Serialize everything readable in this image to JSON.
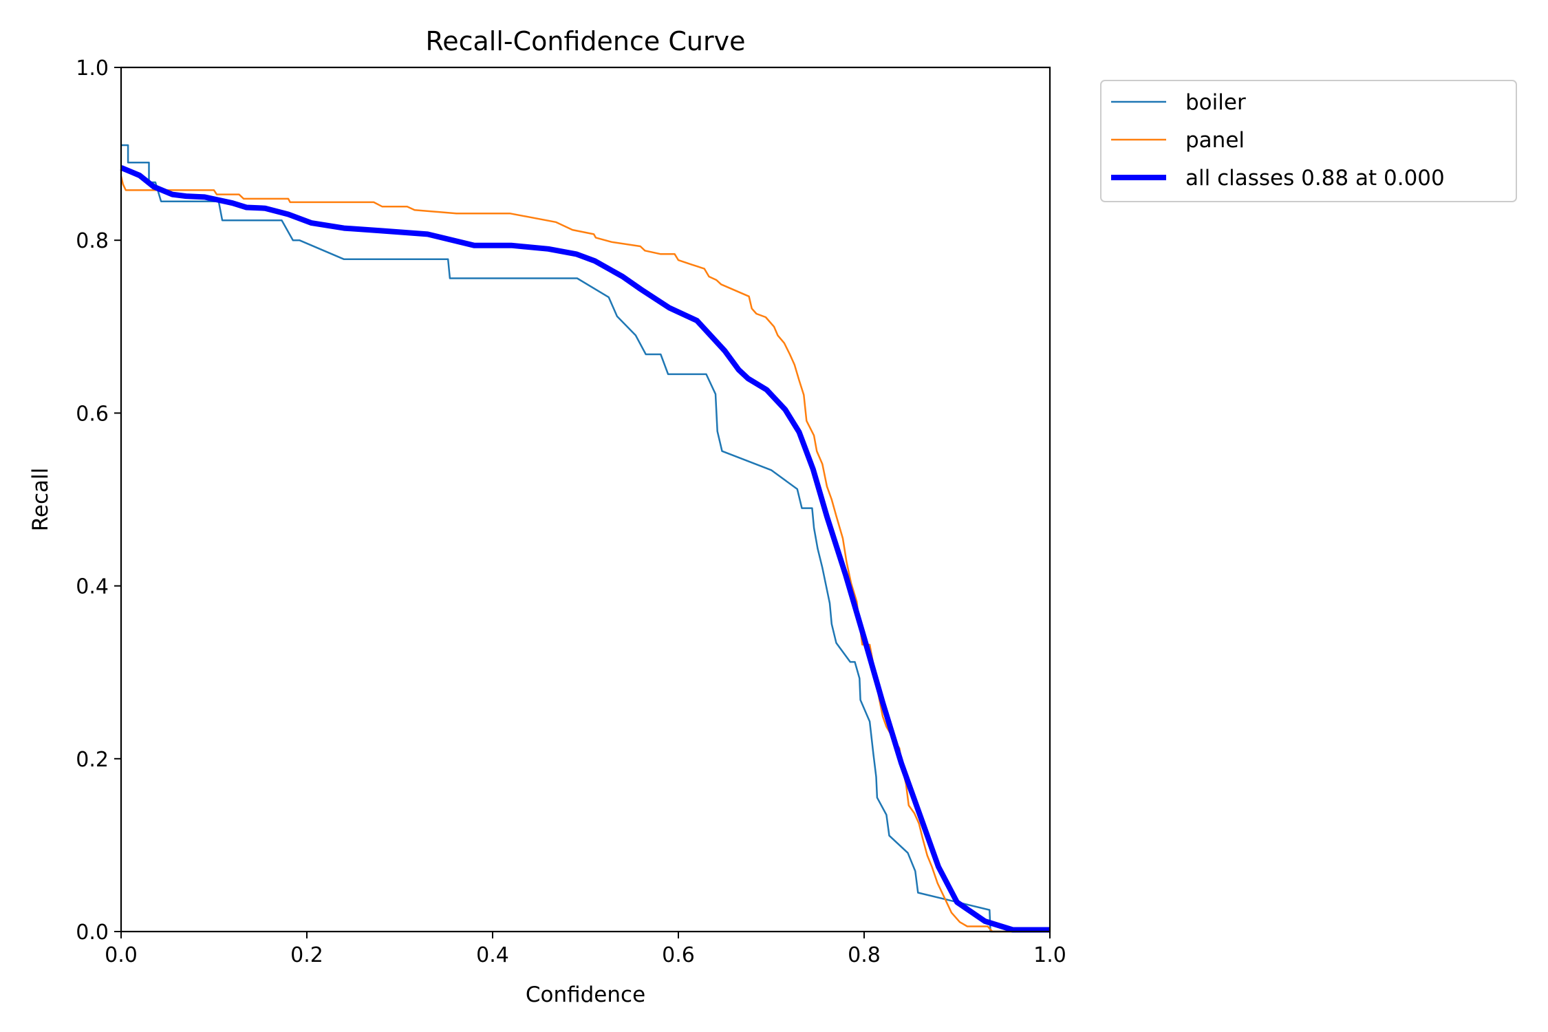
{
  "chart_data": {
    "type": "line",
    "title": "Recall-Confidence Curve",
    "xlabel": "Confidence",
    "ylabel": "Recall",
    "xlim": [
      0,
      1
    ],
    "ylim": [
      0,
      1
    ],
    "xticks": [
      "0.0",
      "0.2",
      "0.4",
      "0.6",
      "0.8",
      "1.0"
    ],
    "yticks": [
      "0.0",
      "0.2",
      "0.4",
      "0.6",
      "0.8",
      "1.0"
    ],
    "grid": false,
    "legend_position": "outside-top-right",
    "series": [
      {
        "name": "boiler",
        "color": "#1f77b4",
        "x": [
          0,
          0.0075,
          0.0075,
          0.03,
          0.03,
          0.037,
          0.043,
          0.1,
          0.105,
          0.109,
          0.173,
          0.185,
          0.192,
          0.24,
          0.352,
          0.354,
          0.491,
          0.525,
          0.534,
          0.554,
          0.565,
          0.581,
          0.589,
          0.63,
          0.64,
          0.642,
          0.647,
          0.7,
          0.728,
          0.733,
          0.744,
          0.746,
          0.75,
          0.755,
          0.763,
          0.765,
          0.77,
          0.785,
          0.79,
          0.795,
          0.796,
          0.806,
          0.81,
          0.813,
          0.814,
          0.824,
          0.827,
          0.847,
          0.855,
          0.858,
          0.935,
          0.936,
          1.0
        ],
        "y": [
          0.91,
          0.91,
          0.89,
          0.89,
          0.867,
          0.867,
          0.845,
          0.845,
          0.845,
          0.823,
          0.823,
          0.8,
          0.8,
          0.778,
          0.778,
          0.756,
          0.756,
          0.734,
          0.712,
          0.69,
          0.668,
          0.668,
          0.645,
          0.645,
          0.622,
          0.579,
          0.556,
          0.534,
          0.512,
          0.49,
          0.49,
          0.467,
          0.443,
          0.421,
          0.38,
          0.356,
          0.334,
          0.312,
          0.312,
          0.293,
          0.268,
          0.243,
          0.205,
          0.179,
          0.155,
          0.135,
          0.111,
          0.091,
          0.07,
          0.045,
          0.025,
          0,
          0
        ]
      },
      {
        "name": "panel",
        "color": "#ff7f0e",
        "x": [
          0,
          0.002,
          0.005,
          0.1,
          0.103,
          0.127,
          0.132,
          0.18,
          0.182,
          0.272,
          0.281,
          0.308,
          0.316,
          0.361,
          0.419,
          0.468,
          0.486,
          0.509,
          0.511,
          0.528,
          0.559,
          0.564,
          0.581,
          0.596,
          0.6,
          0.614,
          0.628,
          0.633,
          0.641,
          0.646,
          0.676,
          0.679,
          0.684,
          0.694,
          0.703,
          0.707,
          0.714,
          0.72,
          0.725,
          0.73,
          0.735,
          0.738,
          0.746,
          0.749,
          0.755,
          0.76,
          0.765,
          0.77,
          0.777,
          0.781,
          0.786,
          0.792,
          0.798,
          0.806,
          0.81,
          0.815,
          0.82,
          0.824,
          0.83,
          0.838,
          0.842,
          0.845,
          0.848,
          0.854,
          0.859,
          0.863,
          0.868,
          0.873,
          0.879,
          0.887,
          0.894,
          0.903,
          0.911,
          0.933,
          0.938,
          1.0
        ],
        "y": [
          0.874,
          0.865,
          0.858,
          0.858,
          0.853,
          0.853,
          0.848,
          0.848,
          0.844,
          0.844,
          0.839,
          0.839,
          0.835,
          0.831,
          0.831,
          0.821,
          0.812,
          0.807,
          0.803,
          0.798,
          0.793,
          0.788,
          0.784,
          0.784,
          0.777,
          0.772,
          0.767,
          0.758,
          0.754,
          0.749,
          0.735,
          0.721,
          0.715,
          0.711,
          0.7,
          0.69,
          0.681,
          0.668,
          0.656,
          0.638,
          0.621,
          0.591,
          0.574,
          0.556,
          0.541,
          0.515,
          0.5,
          0.481,
          0.455,
          0.428,
          0.403,
          0.382,
          0.332,
          0.332,
          0.309,
          0.276,
          0.249,
          0.237,
          0.226,
          0.212,
          0.185,
          0.171,
          0.146,
          0.137,
          0.125,
          0.108,
          0.088,
          0.075,
          0.056,
          0.038,
          0.022,
          0.011,
          0.006,
          0.006,
          0,
          0
        ]
      },
      {
        "name": "all classes 0.88 at 0.000",
        "color": "#0000ff",
        "x": [
          0,
          0.02,
          0.035,
          0.055,
          0.07,
          0.09,
          0.12,
          0.135,
          0.155,
          0.18,
          0.205,
          0.24,
          0.28,
          0.33,
          0.38,
          0.42,
          0.46,
          0.49,
          0.51,
          0.54,
          0.56,
          0.59,
          0.62,
          0.65,
          0.665,
          0.675,
          0.695,
          0.715,
          0.73,
          0.745,
          0.76,
          0.78,
          0.8,
          0.82,
          0.84,
          0.86,
          0.88,
          0.9,
          0.93,
          0.96,
          1.0
        ],
        "y": [
          0.884,
          0.875,
          0.862,
          0.853,
          0.851,
          0.85,
          0.843,
          0.838,
          0.837,
          0.83,
          0.82,
          0.814,
          0.811,
          0.807,
          0.794,
          0.794,
          0.79,
          0.784,
          0.776,
          0.758,
          0.743,
          0.722,
          0.707,
          0.672,
          0.65,
          0.64,
          0.627,
          0.604,
          0.578,
          0.535,
          0.48,
          0.413,
          0.34,
          0.265,
          0.195,
          0.135,
          0.075,
          0.034,
          0.012,
          0.002,
          0.002
        ]
      }
    ]
  }
}
